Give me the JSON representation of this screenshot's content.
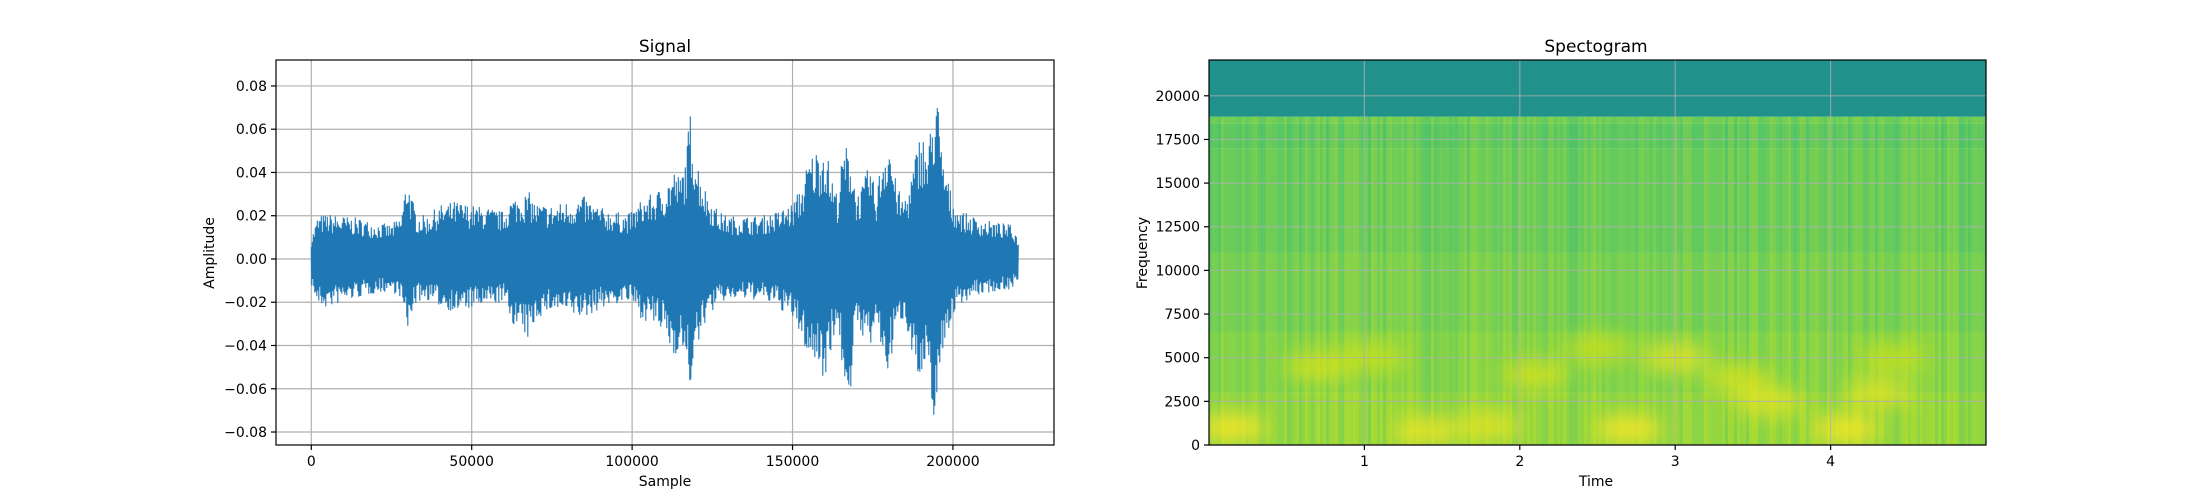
{
  "chart_data": [
    {
      "type": "line",
      "title": "Signal",
      "xlabel": "Sample",
      "ylabel": "Amplitude",
      "xlim": [
        -11000,
        231500
      ],
      "ylim": [
        -0.086,
        0.092
      ],
      "xticks": [
        0,
        50000,
        100000,
        150000,
        200000
      ],
      "xtick_labels": [
        "0",
        "50000",
        "100000",
        "150000",
        "200000"
      ],
      "yticks": [
        -0.08,
        -0.06,
        -0.04,
        -0.02,
        0.0,
        0.02,
        0.04,
        0.06,
        0.08
      ],
      "ytick_labels": [
        "−0.08",
        "−0.06",
        "−0.04",
        "−0.02",
        "0.00",
        "0.02",
        "0.04",
        "0.06",
        "0.08"
      ],
      "grid": true,
      "color": "#1f77b4",
      "series": [
        {
          "x": [
            0,
            2000,
            5000,
            10000,
            15000,
            20000,
            25000,
            28000,
            30000,
            31000,
            33000,
            36000,
            40000,
            45000,
            50000,
            55000,
            60000,
            62000,
            65000,
            68000,
            70000,
            75000,
            80000,
            85000,
            90000,
            95000,
            98000,
            100000,
            103000,
            106000,
            110000,
            113000,
            115000,
            117000,
            118000,
            120000,
            123000,
            127000,
            130000,
            135000,
            140000,
            145000,
            150000,
            153000,
            155000,
            158000,
            160000,
            162000,
            164000,
            166000,
            168000,
            170000,
            172000,
            174000,
            176000,
            178000,
            180000,
            182000,
            184000,
            186000,
            188000,
            190000,
            192000,
            194000,
            195000,
            196000,
            198000,
            200000,
            203000,
            206000,
            210000,
            214000,
            218000,
            220500
          ],
          "upper": [
            0.01,
            0.02,
            0.021,
            0.02,
            0.019,
            0.017,
            0.016,
            0.02,
            0.041,
            0.03,
            0.021,
            0.02,
            0.025,
            0.027,
            0.025,
            0.024,
            0.022,
            0.028,
            0.03,
            0.031,
            0.026,
            0.025,
            0.027,
            0.029,
            0.024,
            0.022,
            0.021,
            0.022,
            0.028,
            0.03,
            0.034,
            0.042,
            0.038,
            0.05,
            0.07,
            0.048,
            0.032,
            0.022,
            0.02,
            0.02,
            0.02,
            0.022,
            0.026,
            0.035,
            0.047,
            0.052,
            0.055,
            0.04,
            0.03,
            0.053,
            0.052,
            0.03,
            0.035,
            0.045,
            0.03,
            0.05,
            0.06,
            0.038,
            0.028,
            0.032,
            0.046,
            0.062,
            0.05,
            0.072,
            0.084,
            0.055,
            0.04,
            0.027,
            0.022,
            0.02,
            0.018,
            0.017,
            0.016,
            0.01
          ],
          "lower": [
            -0.012,
            -0.022,
            -0.023,
            -0.02,
            -0.018,
            -0.016,
            -0.015,
            -0.018,
            -0.036,
            -0.026,
            -0.02,
            -0.019,
            -0.022,
            -0.025,
            -0.023,
            -0.022,
            -0.02,
            -0.028,
            -0.035,
            -0.038,
            -0.028,
            -0.024,
            -0.026,
            -0.028,
            -0.023,
            -0.021,
            -0.02,
            -0.021,
            -0.028,
            -0.03,
            -0.035,
            -0.046,
            -0.04,
            -0.052,
            -0.06,
            -0.045,
            -0.028,
            -0.021,
            -0.019,
            -0.019,
            -0.019,
            -0.022,
            -0.028,
            -0.038,
            -0.046,
            -0.05,
            -0.056,
            -0.042,
            -0.03,
            -0.058,
            -0.063,
            -0.032,
            -0.036,
            -0.044,
            -0.03,
            -0.046,
            -0.054,
            -0.036,
            -0.028,
            -0.034,
            -0.048,
            -0.064,
            -0.052,
            -0.073,
            -0.078,
            -0.05,
            -0.036,
            -0.026,
            -0.02,
            -0.018,
            -0.016,
            -0.015,
            -0.014,
            -0.01
          ]
        }
      ]
    },
    {
      "type": "heatmap",
      "title": "Spectogram",
      "xlabel": "Time",
      "ylabel": "Frequency",
      "xlim": [
        0,
        5.0
      ],
      "ylim": [
        0,
        22050
      ],
      "xticks": [
        1,
        2,
        3,
        4
      ],
      "xtick_labels": [
        "1",
        "2",
        "3",
        "4"
      ],
      "yticks": [
        0,
        2500,
        5000,
        7500,
        10000,
        12500,
        15000,
        17500,
        20000
      ],
      "ytick_labels": [
        "0",
        "2500",
        "5000",
        "7500",
        "10000",
        "12500",
        "15000",
        "17500",
        "20000"
      ],
      "grid": true,
      "colormap": [
        "#21918c",
        "#35b779",
        "#5ec962",
        "#90d743",
        "#c8e020",
        "#fde725"
      ],
      "bands": [
        {
          "f0": 18800,
          "f1": 22050,
          "level": 0.0
        },
        {
          "f0": 18400,
          "f1": 18800,
          "level": 0.45
        },
        {
          "f0": 17000,
          "f1": 18400,
          "level": 0.35
        },
        {
          "f0": 11000,
          "f1": 17000,
          "level": 0.42
        },
        {
          "f0": 6500,
          "f1": 11000,
          "level": 0.5
        },
        {
          "f0": 3000,
          "f1": 6500,
          "level": 0.58
        },
        {
          "f0": 0,
          "f1": 3000,
          "level": 0.66
        }
      ],
      "hotspots": [
        {
          "t": 0.15,
          "f": 1000,
          "level": 1.0
        },
        {
          "t": 0.7,
          "f": 4500,
          "level": 0.85
        },
        {
          "t": 1.4,
          "f": 800,
          "level": 0.95
        },
        {
          "t": 1.05,
          "f": 5000,
          "level": 0.8
        },
        {
          "t": 1.8,
          "f": 1100,
          "level": 0.9
        },
        {
          "t": 2.1,
          "f": 4000,
          "level": 0.85
        },
        {
          "t": 2.5,
          "f": 5500,
          "level": 0.8
        },
        {
          "t": 2.7,
          "f": 900,
          "level": 1.0
        },
        {
          "t": 3.0,
          "f": 5000,
          "level": 0.9
        },
        {
          "t": 3.4,
          "f": 3800,
          "level": 0.85
        },
        {
          "t": 3.6,
          "f": 2500,
          "level": 0.9
        },
        {
          "t": 4.1,
          "f": 900,
          "level": 1.0
        },
        {
          "t": 4.3,
          "f": 3000,
          "level": 0.9
        },
        {
          "t": 4.4,
          "f": 5000,
          "level": 0.8
        }
      ]
    }
  ]
}
